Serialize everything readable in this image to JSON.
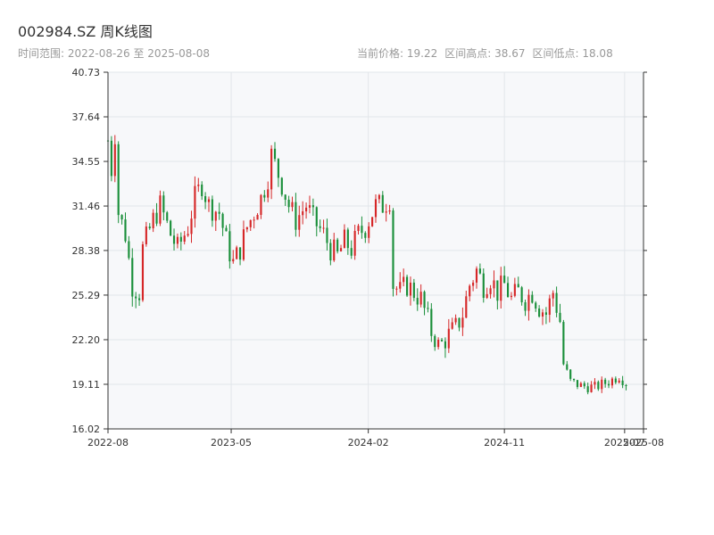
{
  "header": {
    "title": "002984.SZ 周K线图",
    "range_label": "时间范围:",
    "range_start": "2022-08-26",
    "range_sep": "至",
    "range_end": "2025-08-08",
    "current_label": "当前价格:",
    "current_value": "19.22",
    "high_label": "区间高点:",
    "high_value": "38.67",
    "low_label": "区间低点:",
    "low_value": "18.08"
  },
  "colors": {
    "up": "#d62728",
    "down": "#1a8f3a",
    "grid": "#e2e6ea",
    "plot_bg": "#f7f8fa",
    "axis": "#333333"
  },
  "chart_data": {
    "type": "candlestick",
    "title": "002984.SZ 周K线图",
    "ylim": [
      16.02,
      40.73
    ],
    "y_ticks": [
      "16.02",
      "19.11",
      "22.20",
      "25.29",
      "28.38",
      "31.46",
      "34.55",
      "37.64",
      "40.73"
    ],
    "x_ticks": [
      {
        "label": "2022-08",
        "date": "2022-08-26"
      },
      {
        "label": "2023-05",
        "date": "2023-05-01"
      },
      {
        "label": "2024-02",
        "date": "2024-02-01"
      },
      {
        "label": "2024-11",
        "date": "2024-11-01"
      },
      {
        "label": "2025-07",
        "date": "2025-07-01"
      },
      {
        "label": "2025-08",
        "date": "2025-08-08"
      }
    ],
    "x_range": [
      "2022-08-26",
      "2025-08-08"
    ],
    "grid": true,
    "anchors": [
      [
        0,
        36.0
      ],
      [
        1,
        34.0
      ],
      [
        2,
        36.5
      ],
      [
        3,
        31.0
      ],
      [
        5,
        29.5
      ],
      [
        7,
        26.0
      ],
      [
        9,
        25.5
      ],
      [
        10,
        28.5
      ],
      [
        13,
        30.5
      ],
      [
        15,
        31.5
      ],
      [
        18,
        29.5
      ],
      [
        20,
        28.5
      ],
      [
        23,
        30.0
      ],
      [
        25,
        32.0
      ],
      [
        27,
        33.0
      ],
      [
        29,
        31.5
      ],
      [
        32,
        31.0
      ],
      [
        34,
        29.0
      ],
      [
        36,
        27.5
      ],
      [
        38,
        28.5
      ],
      [
        40,
        30.0
      ],
      [
        42,
        31.0
      ],
      [
        44,
        32.0
      ],
      [
        46,
        33.5
      ],
      [
        47,
        35.0
      ],
      [
        50,
        33.0
      ],
      [
        52,
        31.5
      ],
      [
        54,
        30.5
      ],
      [
        57,
        31.5
      ],
      [
        59,
        30.5
      ],
      [
        62,
        29.5
      ],
      [
        64,
        28.5
      ],
      [
        66,
        28.0
      ],
      [
        68,
        29.0
      ],
      [
        70,
        28.5
      ],
      [
        72,
        29.5
      ],
      [
        74,
        30.0
      ],
      [
        77,
        31.5
      ],
      [
        79,
        31.5
      ],
      [
        81,
        32.0
      ],
      [
        82,
        26.0
      ],
      [
        84,
        25.5
      ],
      [
        86,
        26.0
      ],
      [
        88,
        25.5
      ],
      [
        90,
        25.0
      ],
      [
        92,
        23.5
      ],
      [
        94,
        22.0
      ],
      [
        96,
        22.0
      ],
      [
        98,
        22.5
      ],
      [
        100,
        23.0
      ],
      [
        102,
        24.0
      ],
      [
        104,
        26.0
      ],
      [
        106,
        27.0
      ],
      [
        108,
        26.0
      ],
      [
        110,
        26.5
      ],
      [
        112,
        25.5
      ],
      [
        114,
        26.0
      ],
      [
        116,
        25.0
      ],
      [
        118,
        25.5
      ],
      [
        120,
        25.0
      ],
      [
        122,
        25.5
      ],
      [
        124,
        24.5
      ],
      [
        126,
        24.0
      ],
      [
        128,
        25.5
      ],
      [
        130,
        23.5
      ],
      [
        131,
        20.5
      ],
      [
        133,
        19.3
      ],
      [
        136,
        19.0
      ],
      [
        140,
        18.9
      ],
      [
        144,
        19.3
      ],
      [
        147,
        19.7
      ],
      [
        149,
        19.2
      ]
    ],
    "volatility": 0.9,
    "seed": 7
  }
}
